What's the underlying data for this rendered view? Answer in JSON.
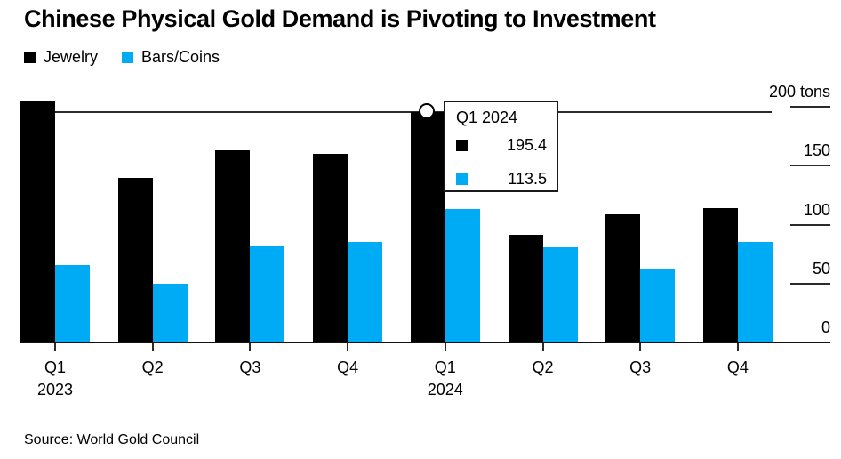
{
  "title": "Chinese Physical Gold Demand is Pivoting to Investment",
  "source": "Source: World Gold Council",
  "colors": {
    "jewelry": "#000000",
    "bars_coins": "#00abf5",
    "axis_line": "#2b2b2b",
    "background": "#ffffff"
  },
  "legend": {
    "items": [
      {
        "label": "Jewelry",
        "color": "#000000"
      },
      {
        "label": "Bars/Coins",
        "color": "#00abf5"
      }
    ]
  },
  "y_axis": {
    "ticks": [
      {
        "label": "200 tons",
        "value": 200
      },
      {
        "label": "150",
        "value": 150
      },
      {
        "label": "100",
        "value": 100
      },
      {
        "label": "50",
        "value": 50
      },
      {
        "label": "0",
        "value": 0
      }
    ]
  },
  "x_axis": {
    "ticks": [
      {
        "quarter": "Q1",
        "year": "2023"
      },
      {
        "quarter": "Q2",
        "year": ""
      },
      {
        "quarter": "Q3",
        "year": ""
      },
      {
        "quarter": "Q4",
        "year": ""
      },
      {
        "quarter": "Q1",
        "year": "2024"
      },
      {
        "quarter": "Q2",
        "year": ""
      },
      {
        "quarter": "Q3",
        "year": ""
      },
      {
        "quarter": "Q4",
        "year": ""
      }
    ]
  },
  "tooltip": {
    "title": "Q1 2024",
    "rows": [
      {
        "series": "Jewelry",
        "color": "#000000",
        "value": "195.4"
      },
      {
        "series": "Bars/Coins",
        "color": "#00abf5",
        "value": "113.5"
      }
    ]
  },
  "chart_data": {
    "type": "bar",
    "title": "Chinese Physical Gold Demand is Pivoting to Investment",
    "categories": [
      "Q1 2023",
      "Q2 2023",
      "Q3 2023",
      "Q4 2023",
      "Q1 2024",
      "Q2 2024",
      "Q3 2024",
      "Q4 2024"
    ],
    "series": [
      {
        "name": "Jewelry",
        "color": "#000000",
        "values": [
          205,
          140,
          163,
          160,
          195.4,
          91,
          109,
          114
        ]
      },
      {
        "name": "Bars/Coins",
        "color": "#00abf5",
        "values": [
          66,
          50,
          82,
          85,
          113.5,
          81,
          63,
          85
        ]
      }
    ],
    "xlabel": "",
    "ylabel": "tons",
    "ylim": [
      0,
      200
    ],
    "yticks": [
      0,
      50,
      100,
      150,
      200
    ],
    "grid": false,
    "legend_position": "top-left",
    "highlight": {
      "category": "Q1 2024",
      "category_index": 4,
      "hover_line_value": 195.4,
      "values": {
        "Jewelry": 195.4,
        "Bars/Coins": 113.5
      }
    }
  }
}
